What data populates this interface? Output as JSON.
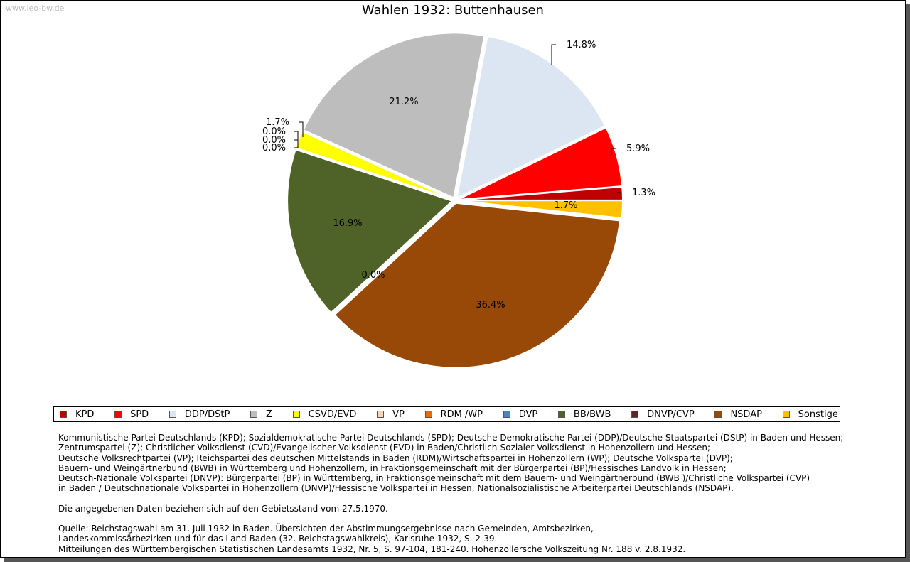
{
  "watermark": "www.leo-bw.de",
  "chart_data": {
    "type": "pie",
    "title": "Wahlen 1932: Buttenhausen",
    "slices": [
      {
        "name": "KPD",
        "value": 1.3,
        "label": "1.3%",
        "color": "#bf0000"
      },
      {
        "name": "SPD",
        "value": 5.9,
        "label": "5.9%",
        "color": "#ff0000"
      },
      {
        "name": "DDP/DStP",
        "value": 14.8,
        "label": "14.8%",
        "color": "#dce6f2"
      },
      {
        "name": "Z",
        "value": 21.2,
        "label": "21.2%",
        "color": "#bdbdbd"
      },
      {
        "name": "CSVD/EVD",
        "value": 1.7,
        "label": "1.7%",
        "color": "#ffff00"
      },
      {
        "name": "VP",
        "value": 0.0,
        "label": "0.0%",
        "color": "#fbd5b5"
      },
      {
        "name": "RDM /WP",
        "value": 0.0,
        "label": "0.0%",
        "color": "#e46c0a"
      },
      {
        "name": "DVP",
        "value": 0.0,
        "label": "0.0%",
        "color": "#4f81bd"
      },
      {
        "name": "BB/BWB",
        "value": 16.9,
        "label": "16.9%",
        "color": "#4f6228"
      },
      {
        "name": "DNVP/CVP",
        "value": 0.0,
        "label": "0.0%",
        "color": "#632523"
      },
      {
        "name": "NSDAP",
        "value": 36.4,
        "label": "36.4%",
        "color": "#984807"
      },
      {
        "name": "Sonstige",
        "value": 1.7,
        "label": "1.7%",
        "color": "#ffc000"
      }
    ]
  },
  "legend": [
    {
      "name": "KPD",
      "color": "#bf0000"
    },
    {
      "name": "SPD",
      "color": "#ff0000"
    },
    {
      "name": "DDP/DStP",
      "color": "#dce6f2"
    },
    {
      "name": "Z",
      "color": "#bdbdbd"
    },
    {
      "name": "CSVD/EVD",
      "color": "#ffff00"
    },
    {
      "name": "VP",
      "color": "#fbd5b5"
    },
    {
      "name": "RDM /WP",
      "color": "#e46c0a"
    },
    {
      "name": "DVP",
      "color": "#4f81bd"
    },
    {
      "name": "BB/BWB",
      "color": "#4f6228"
    },
    {
      "name": "DNVP/CVP",
      "color": "#632523"
    },
    {
      "name": "NSDAP",
      "color": "#984807"
    },
    {
      "name": "Sonstige",
      "color": "#ffc000"
    }
  ],
  "notes": {
    "parties": [
      "Kommunistische Partei Deutschlands (KPD); Sozialdemokratische Partei Deutschlands (SPD); Deutsche Demokratische Partei (DDP)/Deutsche Staatspartei (DStP) in Baden und Hessen;",
      "Zentrumspartei (Z); Christlicher Volksdienst (CVD)/Evangelischer Volksdienst (EVD) in Baden/Christlich-Sozialer Volksdienst in Hohenzollern und Hessen;",
      "Deutsche Volksrechtpartei (VP); Reichspartei des deutschen Mittelstands in Baden (RDM)/Wirtschaftspartei in Hohenzollern (WP); Deutsche Volkspartei (DVP);",
      "Bauern- und Weingärtnerbund (BWB) in Württemberg und Hohenzollern, in Fraktionsgemeinschaft mit der Bürgerpartei (BP)/Hessisches Landvolk in Hessen;",
      "Deutsch-Nationale Volkspartei (DNVP): Bürgerpartei (BP) in Württemberg, in Fraktionsgemeinschaft mit dem Bauern- und Weingärtnerbund (BWB )/Christliche Volkspartei (CVP)",
      "in Baden / Deutschnationale Volkspartei in Hohenzollern (DNVP)/Hessische Volkspartei in Hessen; Nationalsozialistische Arbeiterpartei Deutschlands (NSDAP)."
    ],
    "territory": "Die angegebenen Daten beziehen sich auf den Gebietsstand vom 27.5.1970.",
    "source": [
      "Quelle: Reichstagswahl am 31. Juli 1932 in Baden. Übersichten der Abstimmungsergebnisse nach Gemeinden, Amtsbezirken,",
      "Landeskommissärbezirken und für das Land Baden (32. Reichstagswahlkreis), Karlsruhe 1932, S. 2-39.",
      "Mitteilungen des Württembergischen Statistischen Landesamts 1932, Nr. 5, S. 97-104, 181-240. Hohenzollersche Volkszeitung Nr. 188 v. 2.8.1932."
    ]
  }
}
